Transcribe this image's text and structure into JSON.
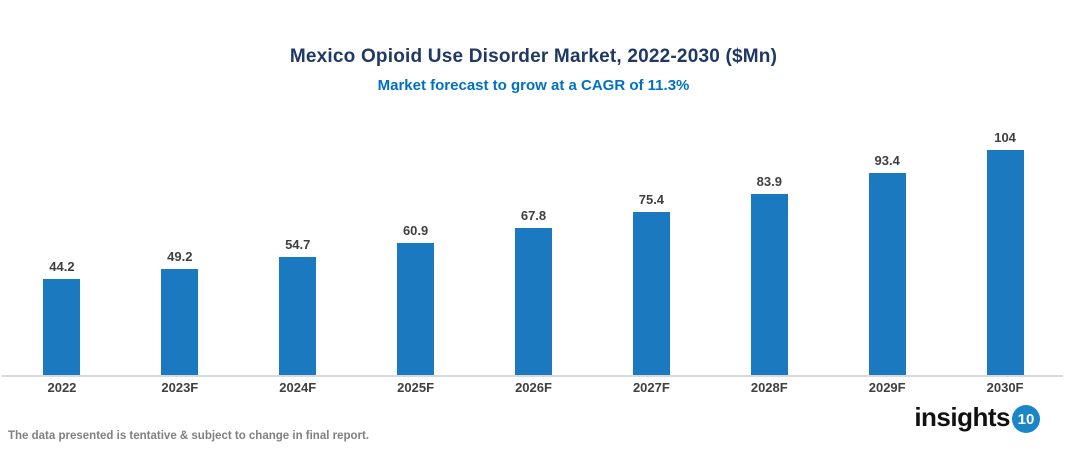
{
  "header": {
    "title": "Mexico Opioid Use Disorder Market, 2022-2030 ($Mn)",
    "subtitle": "Market forecast to grow at a CAGR of 11.3%"
  },
  "chart_data": {
    "type": "bar",
    "title": "Mexico Opioid Use Disorder Market, 2022-2030 ($Mn)",
    "subtitle": "Market forecast to grow at a CAGR of 11.3%",
    "categories": [
      "2022",
      "2023F",
      "2024F",
      "2025F",
      "2026F",
      "2027F",
      "2028F",
      "2029F",
      "2030F"
    ],
    "values": [
      44.2,
      49.2,
      54.7,
      60.9,
      67.8,
      75.4,
      83.9,
      93.4,
      104
    ],
    "value_labels": [
      "44.2",
      "49.2",
      "54.7",
      "60.9",
      "67.8",
      "75.4",
      "83.9",
      "93.4",
      "104"
    ],
    "cagr": "11.3%",
    "xlabel": "",
    "ylabel": "",
    "ylim": [
      0,
      104
    ],
    "grid": false,
    "legend": "none",
    "bar_color": "#1B79BF"
  },
  "colors": {
    "title": "#1F3864",
    "subtitle": "#0070C0",
    "bar": "#1B79BF",
    "data_label": "#404040",
    "axis_line": "#D9D9D9",
    "footnote": "#808080",
    "logo_badge": "#1A86C8"
  },
  "footer": {
    "note": "The data presented is tentative & subject to change in final report.",
    "logo_text": "insights",
    "logo_badge_text": "10"
  }
}
